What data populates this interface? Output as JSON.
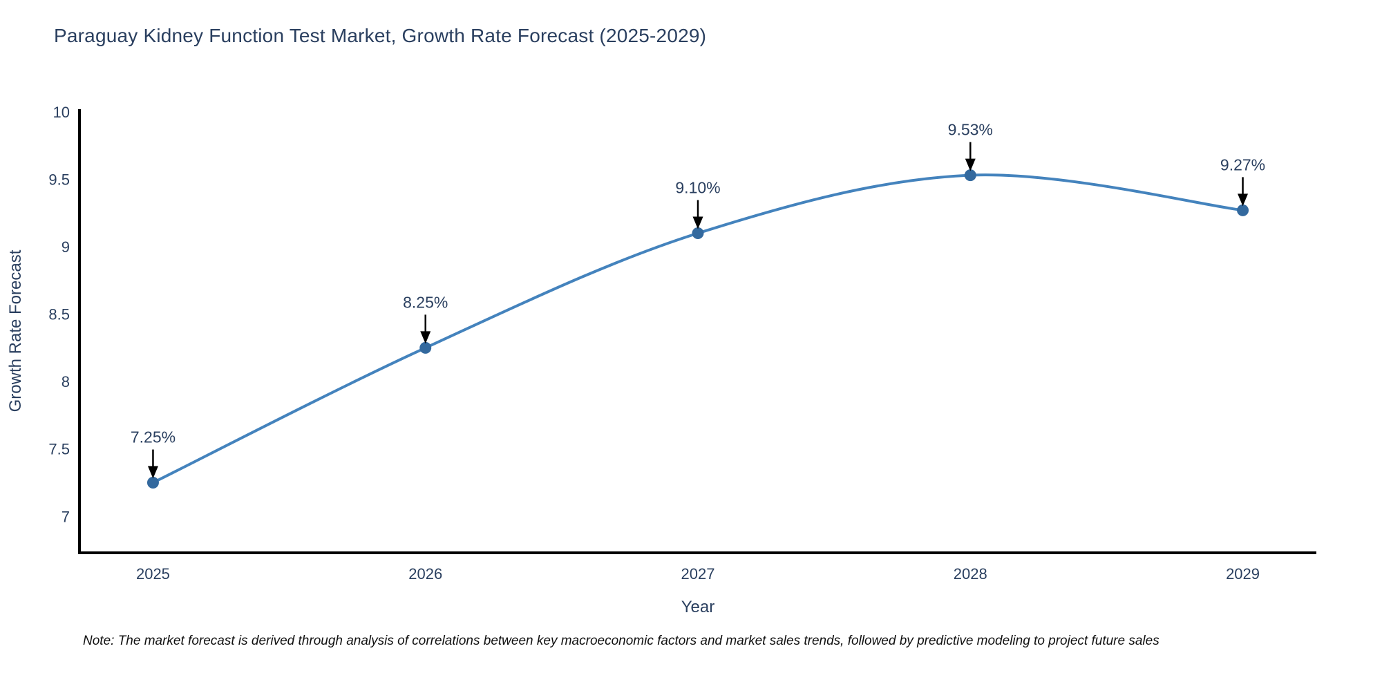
{
  "header": {
    "title": "Paraguay Kidney Function Test Market, Growth Rate Forecast (2025-2029)"
  },
  "footer": {
    "note": "Note: The market forecast is derived through analysis of correlations between key macroeconomic factors and market sales trends, followed by predictive modeling to project future sales"
  },
  "chart_data": {
    "type": "line",
    "title": "Paraguay Kidney Function Test Market, Growth Rate Forecast (2025-2029)",
    "xlabel": "Year",
    "ylabel": "Growth Rate Forecast",
    "x": [
      2025,
      2026,
      2027,
      2028,
      2029
    ],
    "y": [
      7.25,
      8.25,
      9.1,
      9.53,
      9.27
    ],
    "point_labels": [
      "7.25%",
      "8.25%",
      "9.10%",
      "9.53%",
      "9.27%"
    ],
    "x_tick_labels": [
      "2025",
      "2026",
      "2027",
      "2028",
      "2029"
    ],
    "y_ticks": [
      7,
      7.5,
      8,
      8.5,
      9,
      9.5,
      10
    ],
    "y_tick_labels": [
      "7",
      "7.5",
      "8",
      "8.5",
      "9",
      "9.5",
      "10"
    ],
    "xlim": [
      2024.73,
      2029.27
    ],
    "ylim": [
      6.73,
      10.02
    ],
    "grid": false,
    "legend": "none",
    "line_smooth": true,
    "colors": {
      "line": "#4483bd",
      "marker": "#33699e",
      "axis": "#000000",
      "tick_text": "#2a3f5f",
      "annotation_text": "#2a3f5f",
      "annotation_arrow": "#000000",
      "title_text": "#2a3f5f"
    }
  }
}
